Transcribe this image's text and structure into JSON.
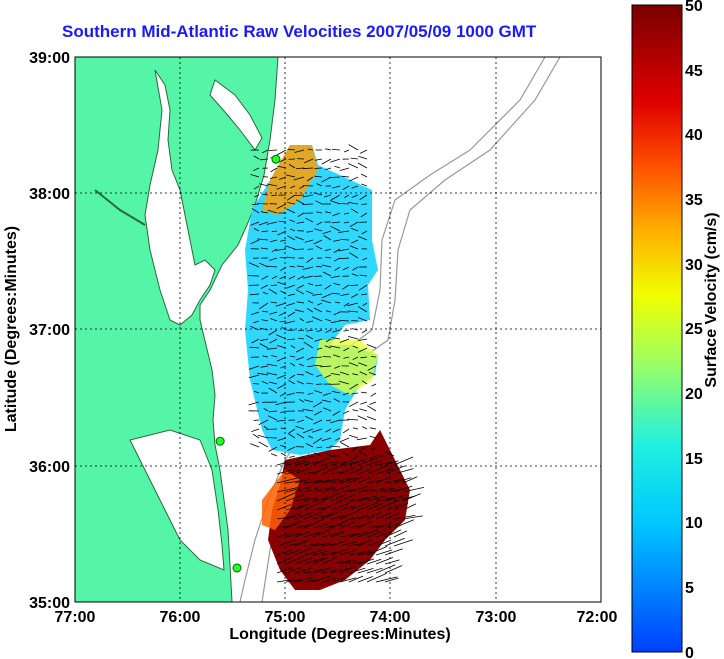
{
  "title": "Southern Mid-Atlantic Raw Velocities 2007/05/09 1000 GMT",
  "map": {
    "xlabel": "Longitude (Degrees:Minutes)",
    "ylabel": "Latitude (Degrees:Minutes)",
    "x_ticks": [
      "77:00",
      "76:00",
      "75:00",
      "74:00",
      "73:00",
      "72:00"
    ],
    "y_ticks": [
      "39:00",
      "38:00",
      "37:00",
      "36:00",
      "35:00"
    ],
    "lon_range": [
      -77,
      -72
    ],
    "lat_range": [
      35,
      39
    ],
    "land_color": "#55f5a8",
    "water_color": "#ffffff",
    "stations": [
      {
        "lon": -75.09,
        "lat": 38.25
      },
      {
        "lon": -75.62,
        "lat": 36.18
      },
      {
        "lon": -75.46,
        "lat": 35.25
      }
    ]
  },
  "colorbar": {
    "label": "Surface Velocity (cm/s)",
    "ticks": [
      "50",
      "45",
      "40",
      "35",
      "30",
      "25",
      "20",
      "15",
      "10",
      "5",
      "0"
    ],
    "range": [
      0,
      50
    ]
  }
}
